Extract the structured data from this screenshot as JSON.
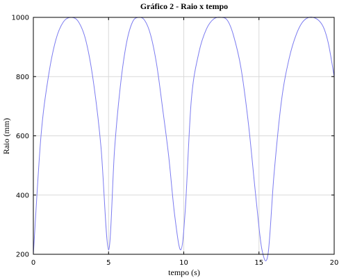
{
  "chart_data": {
    "type": "line",
    "title": "Gráfico 2 - Raio x tempo",
    "xlabel": "tempo (s)",
    "ylabel": "Raio (mm)",
    "xlim": [
      0,
      20
    ],
    "ylim": [
      200,
      1000
    ],
    "x_ticks": [
      0,
      5,
      10,
      15,
      20
    ],
    "y_ticks": [
      200,
      400,
      600,
      800,
      1000
    ],
    "grid": true,
    "legend": "none",
    "series": [
      {
        "color": "#7b7bf0",
        "x": [
          0,
          0.5,
          1,
          1.5,
          2,
          2.5,
          3,
          3.5,
          4,
          4.5,
          5,
          5.4,
          5.8,
          6.2,
          6.6,
          7,
          7.4,
          7.8,
          8.2,
          8.6,
          9,
          9.4,
          9.8,
          10.1,
          10.5,
          11,
          11.5,
          12,
          12.5,
          12.9,
          13.3,
          13.8,
          14.3,
          14.8,
          15.2,
          15.6,
          16,
          16.5,
          17,
          17.5,
          18,
          18.6,
          19.2,
          19.6,
          20
        ],
        "y": [
          200,
          595,
          800,
          925,
          985,
          1000,
          985,
          920,
          780,
          560,
          215,
          555,
          775,
          915,
          985,
          1000,
          990,
          940,
          840,
          690,
          530,
          330,
          215,
          350,
          720,
          880,
          960,
          995,
          1000,
          990,
          940,
          830,
          640,
          390,
          215,
          200,
          470,
          720,
          860,
          945,
          990,
          1000,
          975,
          915,
          800
        ]
      }
    ]
  }
}
